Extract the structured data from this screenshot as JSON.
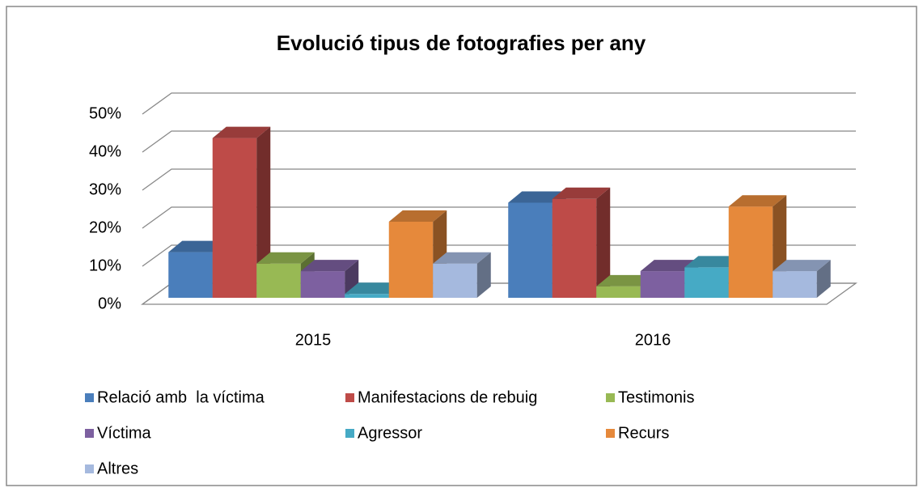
{
  "chart_data": {
    "type": "bar3d",
    "title": "Evolució tipus de fotografies per any",
    "categories": [
      "2015",
      "2016"
    ],
    "series": [
      {
        "name": "Relació amb  la víctima",
        "color": "#4a7ebb",
        "values": [
          12,
          25
        ]
      },
      {
        "name": "Manifestacions de rebuig",
        "color": "#be4b48",
        "values": [
          42,
          26
        ]
      },
      {
        "name": "Testimonis",
        "color": "#98b954",
        "values": [
          9,
          3
        ]
      },
      {
        "name": "Víctima",
        "color": "#7d60a0",
        "values": [
          7,
          7
        ]
      },
      {
        "name": "Agressor",
        "color": "#46aac5",
        "values": [
          1,
          8
        ]
      },
      {
        "name": "Recurs",
        "color": "#e6893b",
        "values": [
          20,
          24
        ]
      },
      {
        "name": "Altres",
        "color": "#a5b9de",
        "values": [
          9,
          7
        ]
      }
    ],
    "ylim": [
      0,
      50
    ],
    "yticks": [
      {
        "value": 0,
        "label": "0%"
      },
      {
        "value": 10,
        "label": "10%"
      },
      {
        "value": 20,
        "label": "20%"
      },
      {
        "value": 30,
        "label": "30%"
      },
      {
        "value": 40,
        "label": "40%"
      },
      {
        "value": 50,
        "label": "50%"
      }
    ],
    "grid": true
  }
}
